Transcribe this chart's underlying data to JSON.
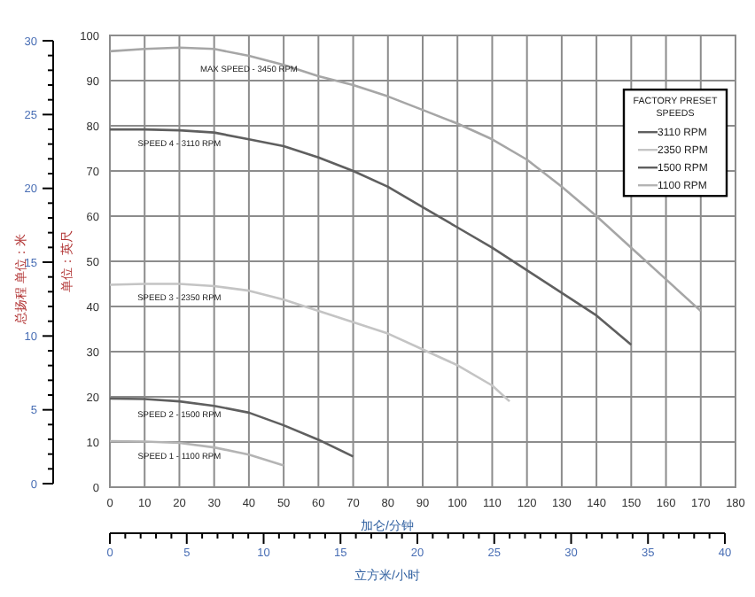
{
  "chart_data": {
    "type": "line",
    "xlabel": "加仑/分钟",
    "ylabel": "单位：英尺",
    "y2label": "总扬程 单位：米",
    "x2label": "立方米/小时",
    "legend_title": "FACTORY PRESET SPEEDS",
    "legend": "top right",
    "grid": true,
    "line_style": "solid",
    "xlim": [
      0,
      180
    ],
    "xticks": [
      0,
      10,
      20,
      30,
      40,
      50,
      60,
      70,
      80,
      90,
      100,
      110,
      120,
      130,
      140,
      150,
      160,
      170,
      180
    ],
    "ylim": [
      0,
      100
    ],
    "yticks": [
      0,
      10,
      20,
      30,
      40,
      50,
      60,
      70,
      80,
      90,
      100
    ],
    "y2lim": [
      0,
      30
    ],
    "y2ticks": [
      0,
      5,
      10,
      15,
      20,
      25,
      30
    ],
    "x2lim": [
      0,
      40
    ],
    "x2ticks": [
      0,
      5,
      10,
      15,
      20,
      25,
      30,
      35,
      40
    ],
    "series": [
      {
        "color": "#a6a6a6",
        "x": [
          0,
          10,
          20,
          30,
          40,
          50,
          60,
          70,
          80,
          90,
          100,
          110,
          120,
          130,
          140,
          150,
          160,
          170
        ],
        "values": [
          96.5,
          97,
          97.3,
          97,
          95.5,
          93.5,
          91,
          89,
          86.5,
          83.5,
          80.5,
          77,
          72.5,
          66.5,
          60,
          53,
          46,
          39
        ]
      },
      {
        "name": "3110 RPM",
        "color": "#5f5f5f",
        "x": [
          0,
          10,
          20,
          30,
          40,
          50,
          60,
          70,
          80,
          90,
          100,
          110,
          120,
          130,
          140,
          150
        ],
        "values": [
          79.2,
          79.2,
          79,
          78.5,
          77,
          75.5,
          73,
          70,
          66.5,
          62,
          57.5,
          53,
          48,
          43,
          38,
          31.5
        ]
      },
      {
        "name": "2350 RPM",
        "color": "#c4c4c4",
        "x": [
          0,
          10,
          20,
          30,
          40,
          50,
          60,
          70,
          80,
          90,
          100,
          110,
          115
        ],
        "values": [
          44.8,
          45,
          45,
          44.5,
          43.5,
          41.5,
          39,
          36.5,
          34,
          30.5,
          27,
          22.5,
          19
        ]
      },
      {
        "name": "1500 RPM",
        "color": "#5f5f5f",
        "x": [
          0,
          10,
          20,
          30,
          40,
          50,
          60,
          70
        ],
        "values": [
          19.6,
          19.5,
          19,
          18,
          16.5,
          13.7,
          10.5,
          6.8
        ]
      },
      {
        "name": "1100 RPM",
        "color": "#b4b4b4",
        "x": [
          0,
          10,
          20,
          30,
          40,
          50
        ],
        "values": [
          10.2,
          10.1,
          9.8,
          8.8,
          7.2,
          4.8
        ]
      }
    ],
    "annotations": [
      "MAX SPEED - 3450 RPM",
      "SPEED 4 - 3110 RPM",
      "SPEED 3 - 2350 RPM",
      "SPEED 2 - 1500 RPM",
      "SPEED 1 - 1100 RPM"
    ]
  }
}
